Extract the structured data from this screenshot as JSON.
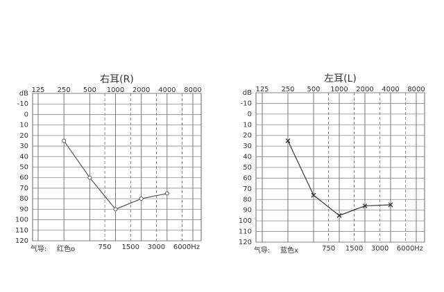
{
  "chart_data": [
    {
      "type": "line",
      "title": "右耳(R)",
      "x": [
        250,
        500,
        1000,
        2000,
        4000
      ],
      "series": [
        {
          "name": "红色o",
          "color": "#555555",
          "marker": "circle",
          "values": [
            25,
            60,
            90,
            80,
            75
          ]
        }
      ],
      "legend_label": "气导:",
      "x_unit": "Hz",
      "log_x": true,
      "y_inverted": true,
      "xlim": [
        125,
        8000
      ],
      "xticks": [
        125,
        250,
        500,
        1000,
        2000,
        4000,
        8000
      ],
      "xticks_minor": [
        750,
        1500,
        3000,
        6000
      ],
      "ylim": [
        -20,
        120
      ],
      "yticks": [
        {
          "value": -20,
          "label": "dB"
        },
        -10,
        0,
        10,
        20,
        30,
        40,
        50,
        60,
        70,
        80,
        90,
        100,
        110,
        120
      ],
      "grid": true
    },
    {
      "type": "line",
      "title": "左耳(L)",
      "x": [
        250,
        500,
        1000,
        2000,
        4000
      ],
      "series": [
        {
          "name": "蓝色x",
          "color": "#333333",
          "marker": "cross",
          "values": [
            25,
            76,
            95,
            86,
            85
          ]
        }
      ],
      "legend_label": "气导:",
      "x_unit": "Hz",
      "log_x": true,
      "y_inverted": true,
      "xlim": [
        125,
        8000
      ],
      "xticks": [
        125,
        250,
        500,
        1000,
        2000,
        4000,
        8000
      ],
      "xticks_minor": [
        750,
        1500,
        3000,
        6000
      ],
      "ylim": [
        -20,
        120
      ],
      "yticks": [
        {
          "value": -20,
          "label": "dB"
        },
        -10,
        0,
        10,
        20,
        30,
        40,
        50,
        60,
        70,
        80,
        90,
        100,
        110,
        120
      ],
      "grid": true
    }
  ]
}
